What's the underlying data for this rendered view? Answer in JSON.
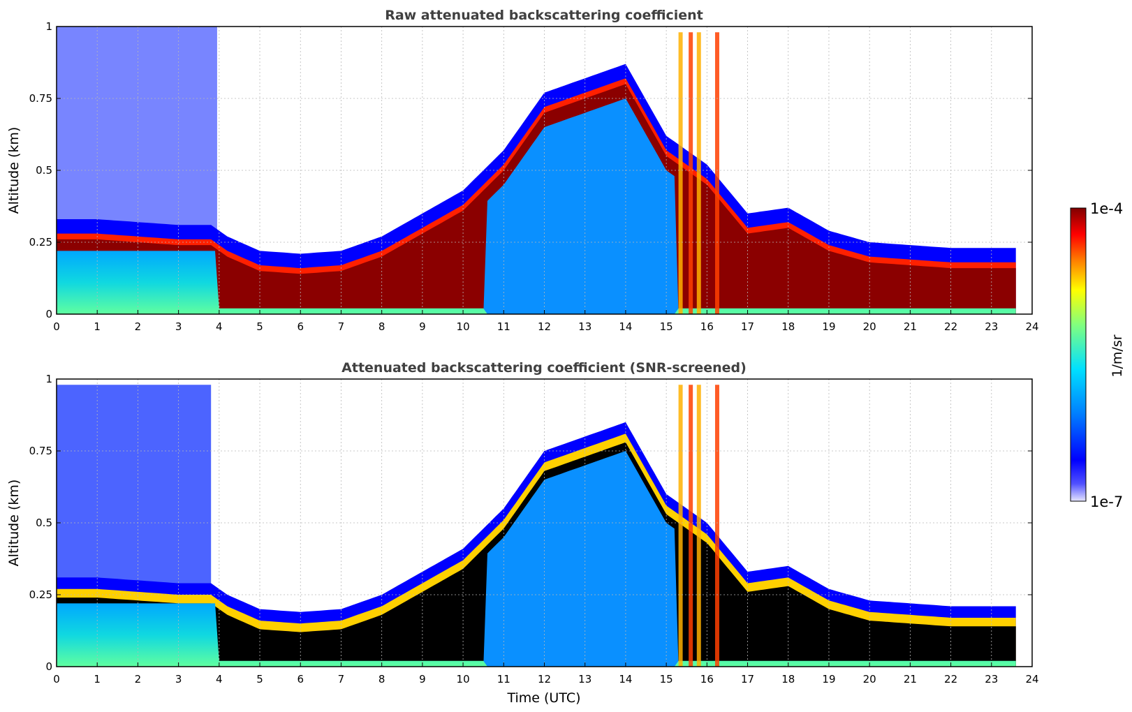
{
  "chart_data": [
    {
      "type": "heatmap",
      "title": "Raw attenuated backscattering coefficient",
      "xlabel": "",
      "ylabel": "Altitude (km)",
      "xlim": [
        0,
        24
      ],
      "ylim": [
        0,
        1
      ],
      "xticks": [
        "0",
        "1",
        "2",
        "3",
        "4",
        "5",
        "6",
        "7",
        "8",
        "9",
        "10",
        "11",
        "12",
        "13",
        "14",
        "15",
        "16",
        "17",
        "18",
        "19",
        "20",
        "21",
        "22",
        "23",
        "24"
      ],
      "yticks": [
        "0",
        "0.25",
        "0.5",
        "0.75",
        "1"
      ],
      "grid": true,
      "data_end_hour": 23.6,
      "layer_top_km": {
        "hours": [
          0,
          1,
          2,
          3,
          3.8,
          4.2,
          5,
          6,
          7,
          8,
          9,
          10,
          11,
          12,
          13,
          14,
          15,
          16,
          17,
          18,
          19,
          20,
          21,
          22,
          23,
          23.6
        ],
        "values": [
          0.26,
          0.26,
          0.25,
          0.24,
          0.24,
          0.2,
          0.15,
          0.14,
          0.15,
          0.2,
          0.28,
          0.36,
          0.5,
          0.7,
          0.75,
          0.8,
          0.55,
          0.45,
          0.28,
          0.3,
          0.22,
          0.18,
          0.17,
          0.16,
          0.16,
          0.16
        ]
      }
    },
    {
      "type": "heatmap",
      "title": "Attenuated backscattering coefficient (SNR-screened)",
      "xlabel": "Time (UTC)",
      "ylabel": "Altitude (km)",
      "xlim": [
        0,
        24
      ],
      "ylim": [
        0,
        1
      ],
      "xticks": [
        "0",
        "1",
        "2",
        "3",
        "4",
        "5",
        "6",
        "7",
        "8",
        "9",
        "10",
        "11",
        "12",
        "13",
        "14",
        "15",
        "16",
        "17",
        "18",
        "19",
        "20",
        "21",
        "22",
        "23",
        "24"
      ],
      "yticks": [
        "0",
        "0.25",
        "0.5",
        "0.75",
        "1"
      ],
      "grid": true,
      "data_end_hour": 23.6
    }
  ],
  "colorbar": {
    "label": "1/m/sr",
    "min_label": "1e-7",
    "max_label": "1e-4",
    "colors": [
      "#e6e6ff",
      "#0000ff",
      "#0080ff",
      "#00e0ff",
      "#80ff80",
      "#ffff00",
      "#ff8000",
      "#ff0000",
      "#800000"
    ]
  }
}
